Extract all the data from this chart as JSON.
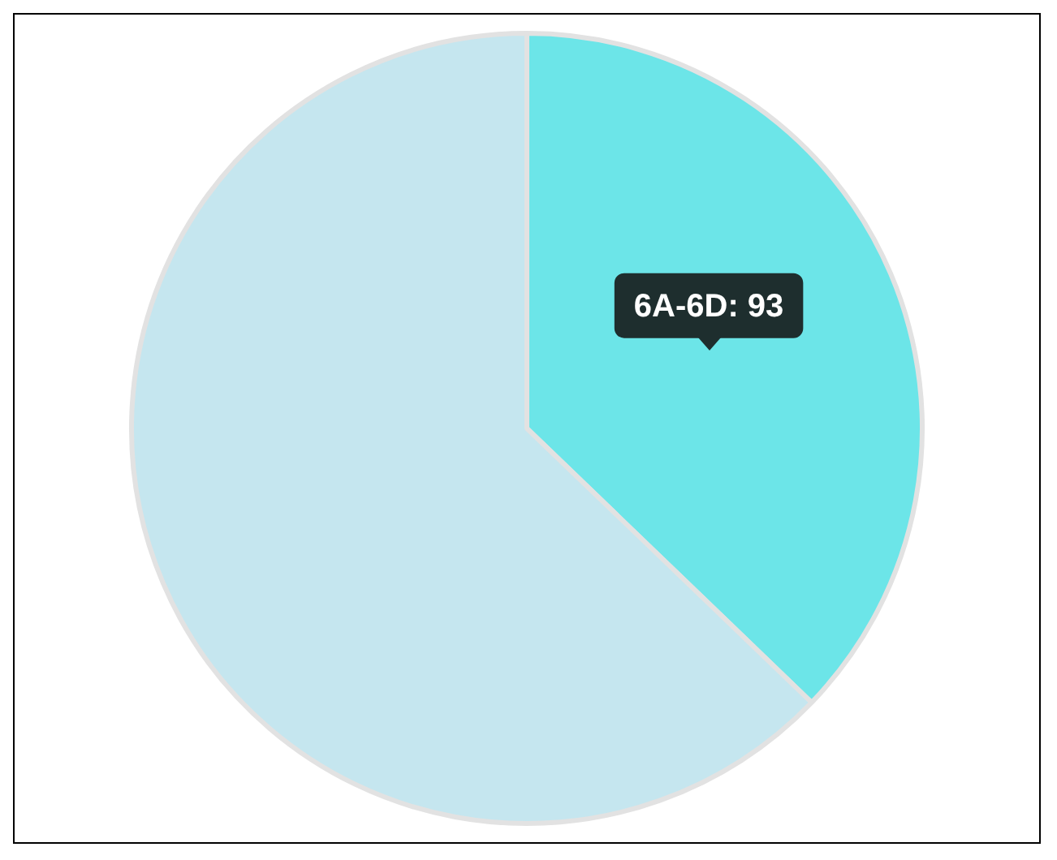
{
  "chart_data": {
    "type": "pie",
    "categories": [
      "6A-6D",
      null
    ],
    "values": [
      93,
      157
    ],
    "colors": [
      "#6ce5e8",
      "#c5e6ef"
    ],
    "value_labels": [
      "93",
      null
    ],
    "legend": false
  }
}
